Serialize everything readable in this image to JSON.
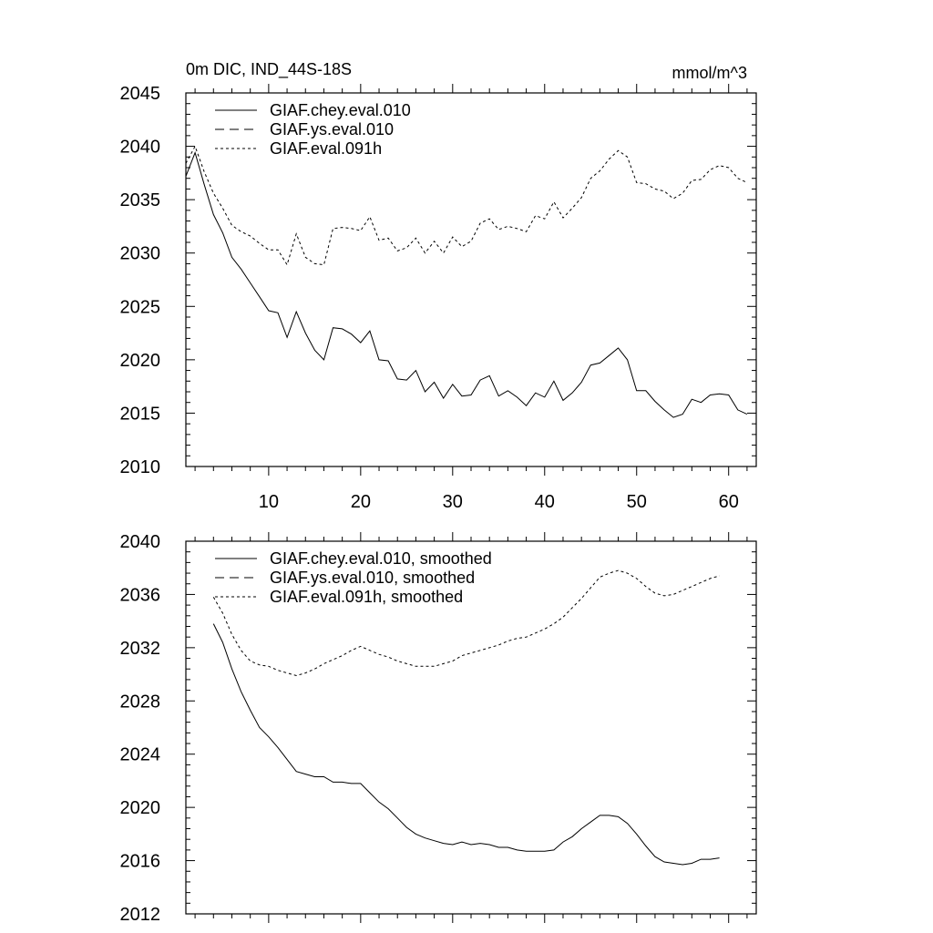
{
  "chart_data": [
    {
      "type": "line",
      "title": "0m DIC, IND_44S-18S",
      "units": "mmol/m^3",
      "xlim": [
        1,
        63
      ],
      "ylim": [
        2010,
        2045
      ],
      "x_ticks": [
        10,
        20,
        30,
        40,
        50,
        60
      ],
      "y_ticks": [
        2010,
        2015,
        2020,
        2025,
        2030,
        2035,
        2040,
        2045
      ],
      "x_labels_shown": true,
      "legend_position": "top-left",
      "series": [
        {
          "name": "GIAF.chey.eval.010",
          "style": "solid",
          "x": [
            1,
            2,
            3,
            4,
            5,
            6,
            7,
            8,
            9,
            10,
            11,
            12,
            13,
            14,
            15,
            16,
            17,
            18,
            19,
            20,
            21,
            22,
            23,
            24,
            25,
            26,
            27,
            28,
            29,
            30,
            31,
            32,
            33,
            34,
            35,
            36,
            37,
            38,
            39,
            40,
            41,
            42,
            43,
            44,
            45,
            46,
            47,
            48,
            49,
            50,
            51,
            52,
            53,
            54,
            55,
            56,
            57,
            58,
            59,
            60,
            61,
            62
          ],
          "y": [
            2037.2,
            2039.4,
            2036.4,
            2033.6,
            2031.9,
            2029.6,
            2028.5,
            2027.2,
            2025.9,
            2024.6,
            2024.4,
            2022.1,
            2024.5,
            2022.5,
            2020.9,
            2020.0,
            2023.0,
            2022.9,
            2022.4,
            2021.6,
            2022.7,
            2020.0,
            2019.9,
            2018.2,
            2018.1,
            2019.0,
            2017.0,
            2017.9,
            2016.4,
            2017.7,
            2016.6,
            2016.7,
            2018.1,
            2018.5,
            2016.6,
            2017.1,
            2016.5,
            2015.7,
            2016.9,
            2016.5,
            2018.0,
            2016.2,
            2016.9,
            2017.9,
            2019.5,
            2019.7,
            2020.4,
            2021.1,
            2020.0,
            2017.1,
            2017.1,
            2016.1,
            2015.3,
            2014.6,
            2014.9,
            2016.3,
            2016.0,
            2016.7,
            2016.8,
            2016.7,
            2015.3,
            2014.9
          ]
        },
        {
          "name": "GIAF.ys.eval.010",
          "style": "dashed",
          "x": [],
          "y": []
        },
        {
          "name": "GIAF.eval.091h",
          "style": "dotted",
          "x": [
            1,
            2,
            3,
            4,
            5,
            6,
            7,
            8,
            9,
            10,
            11,
            12,
            13,
            14,
            15,
            16,
            17,
            18,
            19,
            20,
            21,
            22,
            23,
            24,
            25,
            26,
            27,
            28,
            29,
            30,
            31,
            32,
            33,
            34,
            35,
            36,
            37,
            38,
            39,
            40,
            41,
            42,
            43,
            44,
            45,
            46,
            47,
            48,
            49,
            50,
            51,
            52,
            53,
            54,
            55,
            56,
            57,
            58,
            59,
            60,
            61,
            62
          ],
          "y": [
            2038.4,
            2040.0,
            2037.6,
            2035.6,
            2034.2,
            2032.6,
            2032.0,
            2031.6,
            2030.9,
            2030.3,
            2030.3,
            2028.9,
            2031.8,
            2029.6,
            2029.0,
            2028.9,
            2032.3,
            2032.4,
            2032.3,
            2032.1,
            2033.4,
            2031.2,
            2031.4,
            2030.2,
            2030.5,
            2031.4,
            2030.0,
            2031.1,
            2030.0,
            2031.5,
            2030.6,
            2031.1,
            2032.8,
            2033.2,
            2032.2,
            2032.5,
            2032.3,
            2032.0,
            2033.5,
            2033.2,
            2034.8,
            2033.3,
            2034.2,
            2035.2,
            2037.0,
            2037.7,
            2038.8,
            2039.6,
            2039.0,
            2036.6,
            2036.5,
            2036.0,
            2035.8,
            2035.1,
            2035.6,
            2036.8,
            2036.9,
            2037.8,
            2038.2,
            2038.0,
            2037.0,
            2036.6
          ]
        }
      ]
    },
    {
      "type": "line",
      "xlim": [
        1,
        63
      ],
      "ylim": [
        2012,
        2040
      ],
      "x_ticks": [
        10,
        20,
        30,
        40,
        50,
        60
      ],
      "y_ticks": [
        2012,
        2016,
        2020,
        2024,
        2028,
        2032,
        2036,
        2040
      ],
      "x_labels_shown": false,
      "legend_position": "top-left",
      "series": [
        {
          "name": "GIAF.chey.eval.010, smoothed",
          "style": "solid",
          "x": [
            4,
            5,
            6,
            7,
            8,
            9,
            10,
            11,
            12,
            13,
            14,
            15,
            16,
            17,
            18,
            19,
            20,
            21,
            22,
            23,
            24,
            25,
            26,
            27,
            28,
            29,
            30,
            31,
            32,
            33,
            34,
            35,
            36,
            37,
            38,
            39,
            40,
            41,
            42,
            43,
            44,
            45,
            46,
            47,
            48,
            49,
            50,
            51,
            52,
            53,
            54,
            55,
            56,
            57,
            58,
            59
          ],
          "y": [
            2033.8,
            2032.4,
            2030.4,
            2028.7,
            2027.3,
            2026.0,
            2025.3,
            2024.5,
            2023.6,
            2022.7,
            2022.5,
            2022.3,
            2022.3,
            2021.9,
            2021.9,
            2021.8,
            2021.8,
            2021.1,
            2020.4,
            2019.9,
            2019.2,
            2018.5,
            2018.0,
            2017.7,
            2017.5,
            2017.3,
            2017.2,
            2017.4,
            2017.2,
            2017.3,
            2017.2,
            2017.0,
            2017.0,
            2016.8,
            2016.7,
            2016.7,
            2016.7,
            2016.8,
            2017.4,
            2017.8,
            2018.4,
            2018.9,
            2019.4,
            2019.4,
            2019.3,
            2018.8,
            2018.0,
            2017.1,
            2016.3,
            2015.9,
            2015.8,
            2015.7,
            2015.8,
            2016.1,
            2016.1,
            2016.2
          ]
        },
        {
          "name": "GIAF.ys.eval.010, smoothed",
          "style": "dashed",
          "x": [],
          "y": []
        },
        {
          "name": "GIAF.eval.091h, smoothed",
          "style": "dotted",
          "x": [
            4,
            5,
            6,
            7,
            8,
            9,
            10,
            11,
            12,
            13,
            14,
            15,
            16,
            17,
            18,
            19,
            20,
            21,
            22,
            23,
            24,
            25,
            26,
            27,
            28,
            29,
            30,
            31,
            32,
            33,
            34,
            35,
            36,
            37,
            38,
            39,
            40,
            41,
            42,
            43,
            44,
            45,
            46,
            47,
            48,
            49,
            50,
            51,
            52,
            53,
            54,
            55,
            56,
            57,
            58,
            59
          ],
          "y": [
            2035.8,
            2034.6,
            2033.0,
            2031.8,
            2031.0,
            2030.7,
            2030.6,
            2030.3,
            2030.1,
            2029.9,
            2030.1,
            2030.4,
            2030.8,
            2031.1,
            2031.4,
            2031.8,
            2032.1,
            2031.8,
            2031.5,
            2031.3,
            2031.0,
            2030.8,
            2030.6,
            2030.6,
            2030.6,
            2030.8,
            2031.0,
            2031.4,
            2031.6,
            2031.8,
            2032.0,
            2032.2,
            2032.5,
            2032.7,
            2032.8,
            2033.1,
            2033.4,
            2033.8,
            2034.3,
            2035.0,
            2035.7,
            2036.5,
            2037.3,
            2037.6,
            2037.8,
            2037.6,
            2037.2,
            2036.6,
            2036.1,
            2035.9,
            2036.0,
            2036.3,
            2036.6,
            2036.9,
            2037.2,
            2037.4
          ]
        }
      ]
    }
  ]
}
